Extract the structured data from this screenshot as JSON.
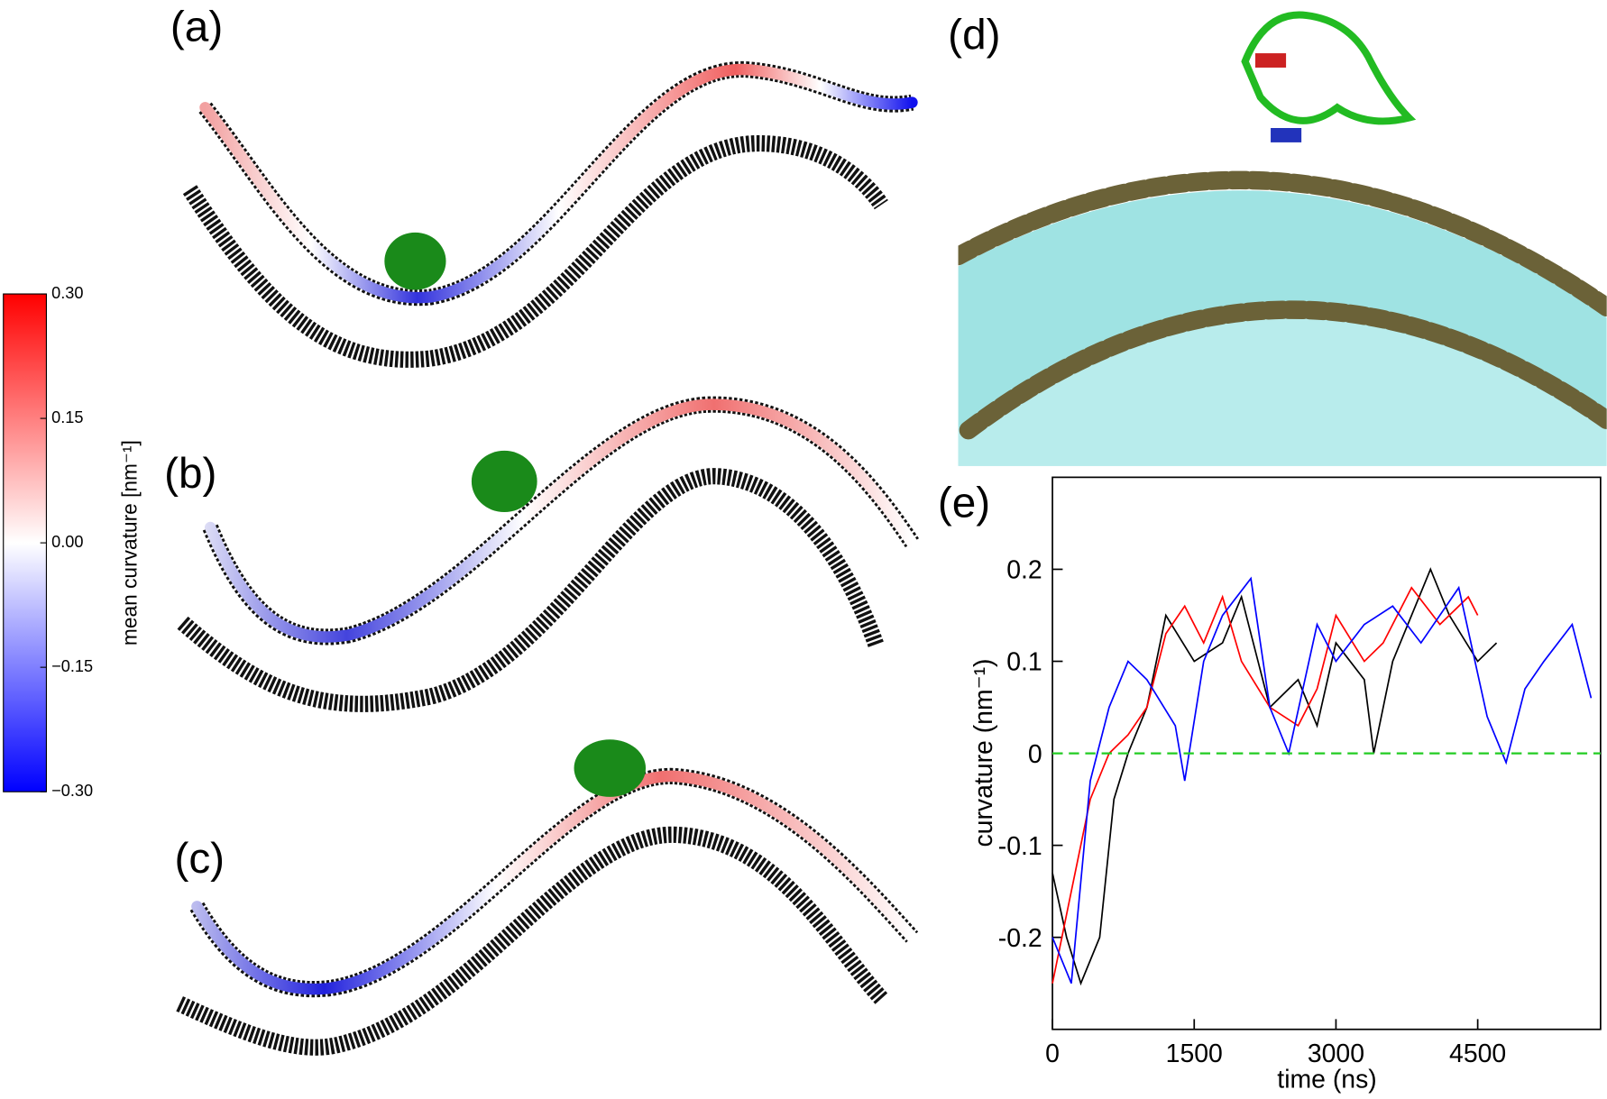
{
  "panel_labels": [
    "(a)",
    "(b)",
    "(c)",
    "(d)"
  ],
  "chart_data": [
    {
      "type": "colorbar",
      "axis_label": "mean curvature [nm⁻¹]",
      "ylim": [
        -0.3,
        0.3
      ],
      "yticks": [
        {
          "value": 0.3,
          "label": "0.30"
        },
        {
          "value": 0.15,
          "label": "0.15"
        },
        {
          "value": 0,
          "label": "0.00"
        },
        {
          "value": -0.15,
          "label": "−0.15"
        },
        {
          "value": -0.3,
          "label": "−0.30"
        }
      ],
      "colors": [
        "#0000ff",
        "#ffffff",
        "#ff0000"
      ]
    },
    {
      "type": "line",
      "title": "(e)",
      "xlabel": "time (ns)",
      "ylabel": "curvature (nm⁻¹)",
      "xlim": [
        0,
        5800
      ],
      "ylim": [
        -0.3,
        0.3
      ],
      "xticks": [
        0,
        1500,
        3000,
        4500
      ],
      "yticks": [
        -0.2,
        -0.1,
        0,
        0.1,
        0.2
      ],
      "hlines": [
        {
          "y": 0,
          "color": "#22cc22",
          "dashed": true
        }
      ],
      "series": [
        {
          "color": "#000000",
          "x": [
            0,
            150,
            300,
            500,
            650,
            800,
            1000,
            1200,
            1500,
            1800,
            2000,
            2300,
            2600,
            2800,
            3000,
            3300,
            3400,
            3600,
            4000,
            4200,
            4500,
            4700
          ],
          "values": [
            -0.13,
            -0.2,
            -0.25,
            -0.2,
            -0.05,
            0,
            0.05,
            0.15,
            0.1,
            0.12,
            0.17,
            0.05,
            0.08,
            0.03,
            0.12,
            0.08,
            0,
            0.1,
            0.2,
            0.15,
            0.1,
            0.12
          ]
        },
        {
          "color": "#ff0000",
          "x": [
            0,
            200,
            400,
            600,
            800,
            1000,
            1200,
            1400,
            1600,
            1800,
            2000,
            2300,
            2600,
            2800,
            3000,
            3300,
            3500,
            3800,
            4100,
            4400,
            4500
          ],
          "values": [
            -0.25,
            -0.15,
            -0.05,
            0,
            0.02,
            0.05,
            0.13,
            0.16,
            0.12,
            0.17,
            0.1,
            0.05,
            0.03,
            0.07,
            0.15,
            0.1,
            0.12,
            0.18,
            0.14,
            0.17,
            0.15
          ]
        },
        {
          "color": "#0000ff",
          "x": [
            0,
            200,
            400,
            600,
            800,
            1000,
            1300,
            1400,
            1600,
            1800,
            2100,
            2300,
            2500,
            2800,
            3000,
            3300,
            3600,
            3900,
            4300,
            4600,
            4800,
            5000,
            5200,
            5500,
            5700
          ],
          "values": [
            -0.2,
            -0.25,
            -0.03,
            0.05,
            0.1,
            0.08,
            0.03,
            -0.03,
            0.1,
            0.15,
            0.19,
            0.05,
            0,
            0.14,
            0.1,
            0.14,
            0.16,
            0.12,
            0.18,
            0.04,
            -0.01,
            0.07,
            0.1,
            0.14,
            0.06
          ]
        }
      ]
    }
  ]
}
